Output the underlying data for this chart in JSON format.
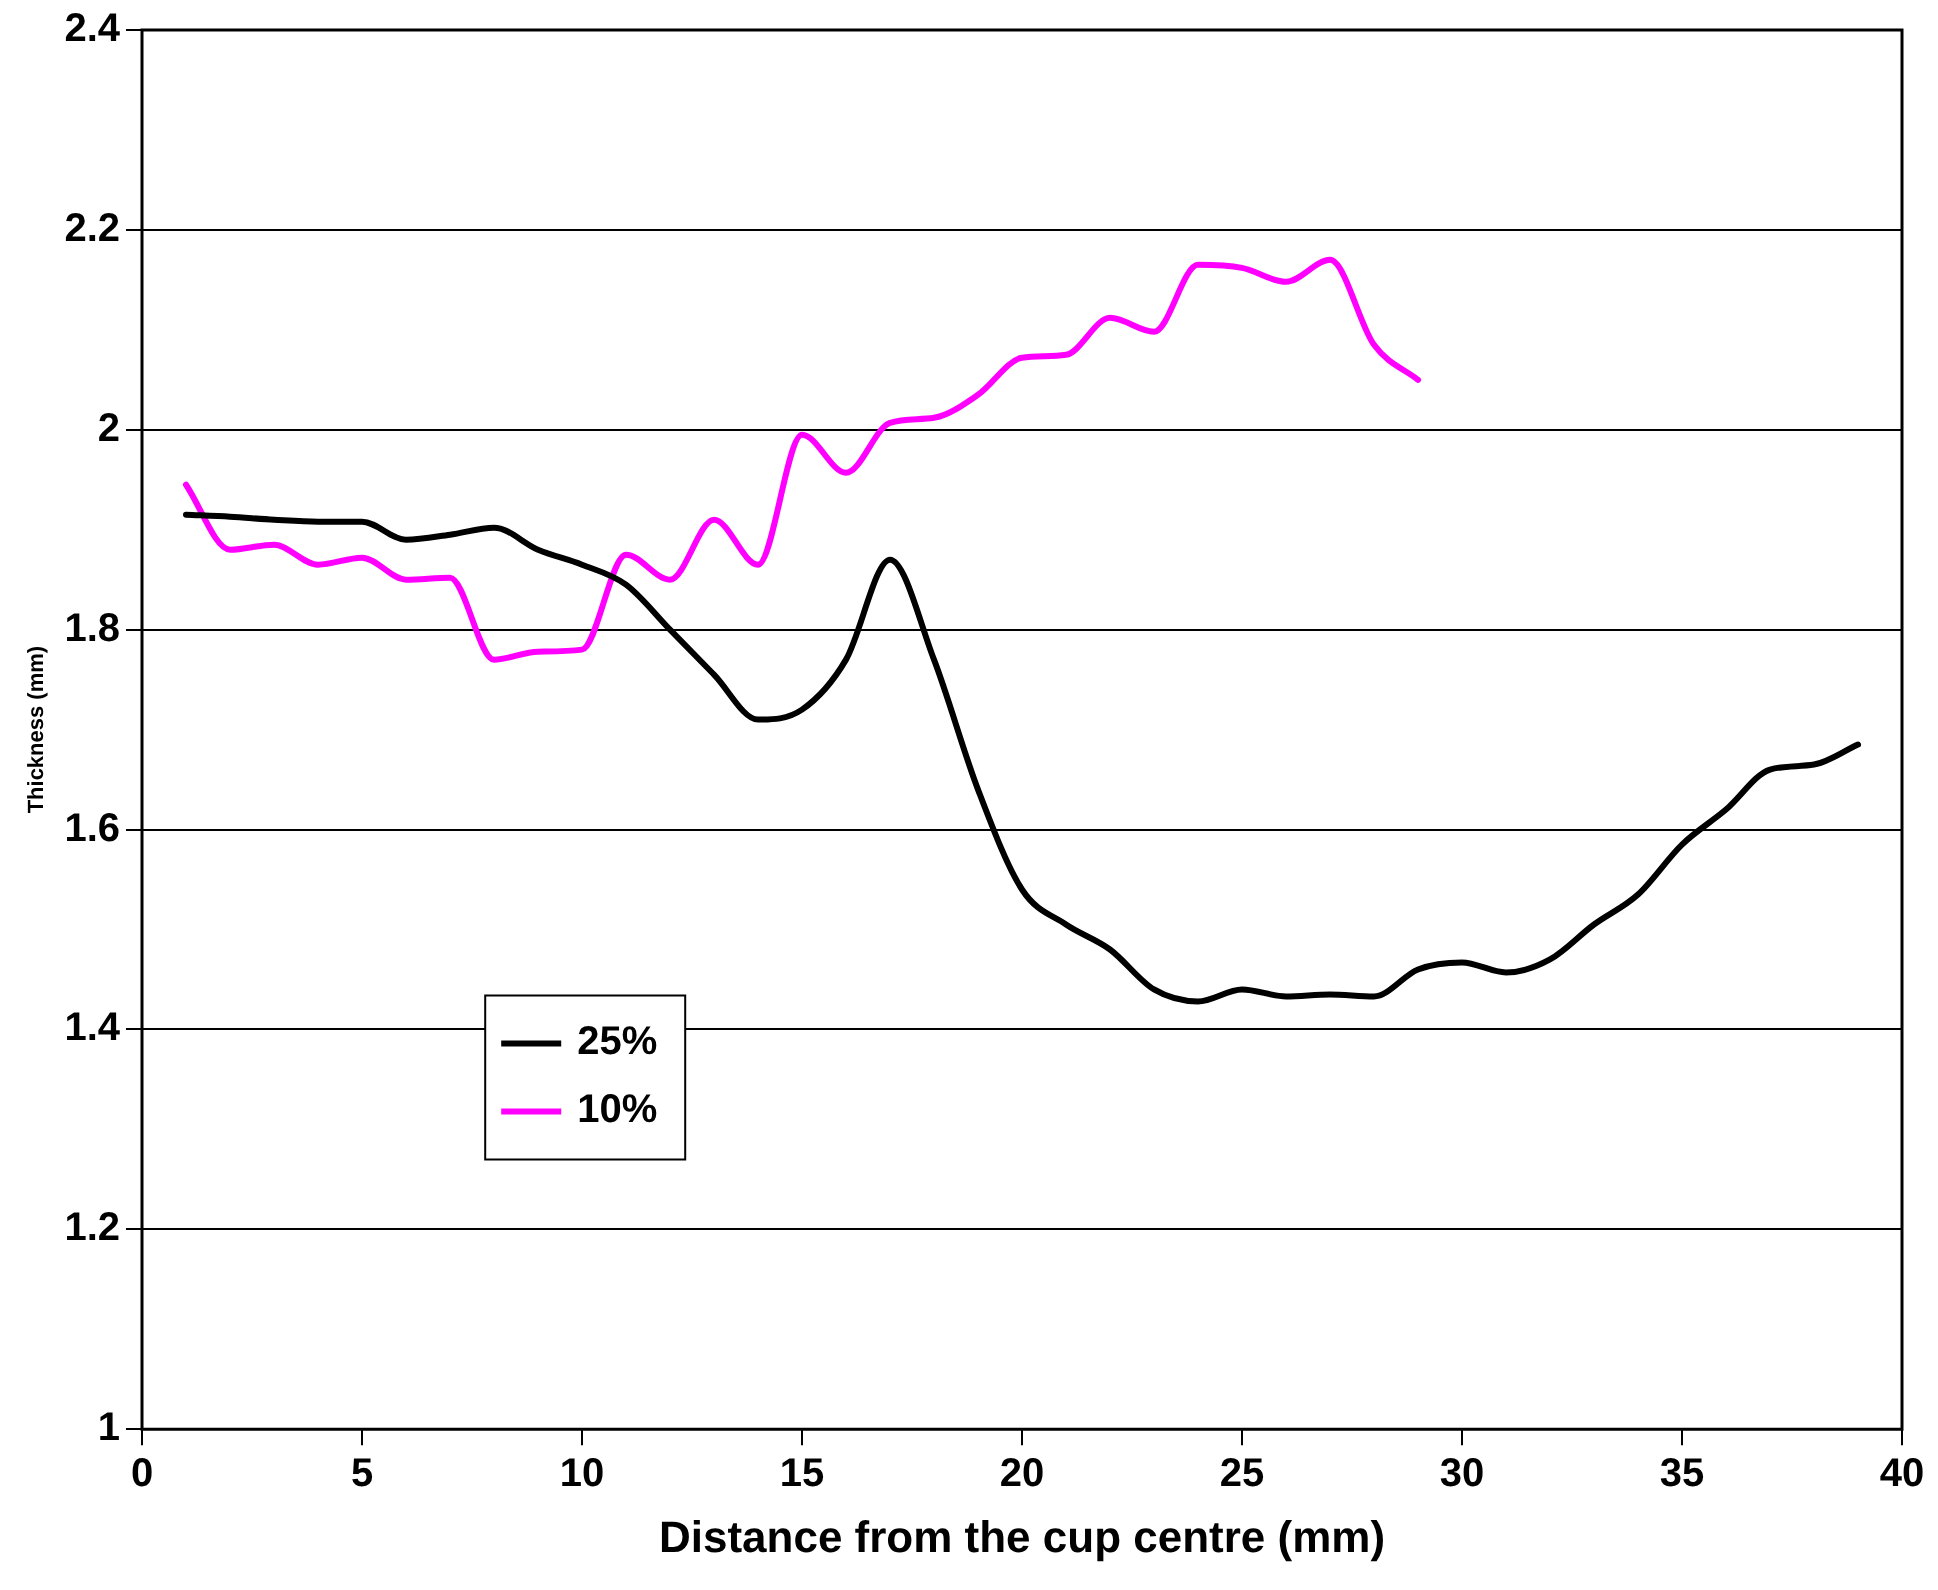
{
  "chart_data": {
    "type": "line",
    "xlabel": "Distance from the cup centre (mm)",
    "ylabel": "Thickness (mm)",
    "xlim": [
      0,
      40
    ],
    "xticks": [
      0,
      5,
      10,
      15,
      20,
      25,
      30,
      35,
      40
    ],
    "ylim": [
      1,
      2.4
    ],
    "yticks": [
      1,
      1.2,
      1.4,
      1.6,
      1.8,
      2,
      2.2,
      2.4
    ],
    "grid": "y",
    "legend": "bottom left",
    "marker": "none",
    "line_style": "solid",
    "series": [
      {
        "name": "25%",
        "color": "#000000",
        "x": [
          1,
          2,
          3,
          4,
          5,
          6,
          7,
          8,
          9,
          10,
          11,
          12,
          13,
          14,
          15,
          16,
          17,
          18,
          19,
          20,
          21,
          22,
          23,
          24,
          25,
          26,
          27,
          28,
          29,
          30,
          31,
          32,
          33,
          34,
          35,
          36,
          37,
          38,
          39
        ],
        "values": [
          1.915,
          1.913,
          1.91,
          1.908,
          1.908,
          1.89,
          1.895,
          1.902,
          1.88,
          1.865,
          1.845,
          1.8,
          1.755,
          1.71,
          1.72,
          1.77,
          1.87,
          1.77,
          1.64,
          1.54,
          1.505,
          1.48,
          1.44,
          1.428,
          1.44,
          1.433,
          1.435,
          1.433,
          1.46,
          1.467,
          1.457,
          1.47,
          1.505,
          1.535,
          1.585,
          1.62,
          1.66,
          1.665,
          1.685
        ]
      },
      {
        "name": "10%",
        "color": "#ff00ff",
        "x": [
          1,
          2,
          3,
          4,
          5,
          6,
          7,
          8,
          9,
          10,
          11,
          12,
          13,
          14,
          15,
          16,
          17,
          18,
          19,
          20,
          21,
          22,
          23,
          24,
          25,
          26,
          27,
          28,
          29
        ],
        "values": [
          1.945,
          1.88,
          1.885,
          1.865,
          1.872,
          1.85,
          1.852,
          1.77,
          1.778,
          1.78,
          1.875,
          1.85,
          1.91,
          1.865,
          1.995,
          1.957,
          2.007,
          2.012,
          2.035,
          2.072,
          2.075,
          2.112,
          2.098,
          2.165,
          2.162,
          2.148,
          2.17,
          2.085,
          2.05
        ]
      }
    ]
  }
}
